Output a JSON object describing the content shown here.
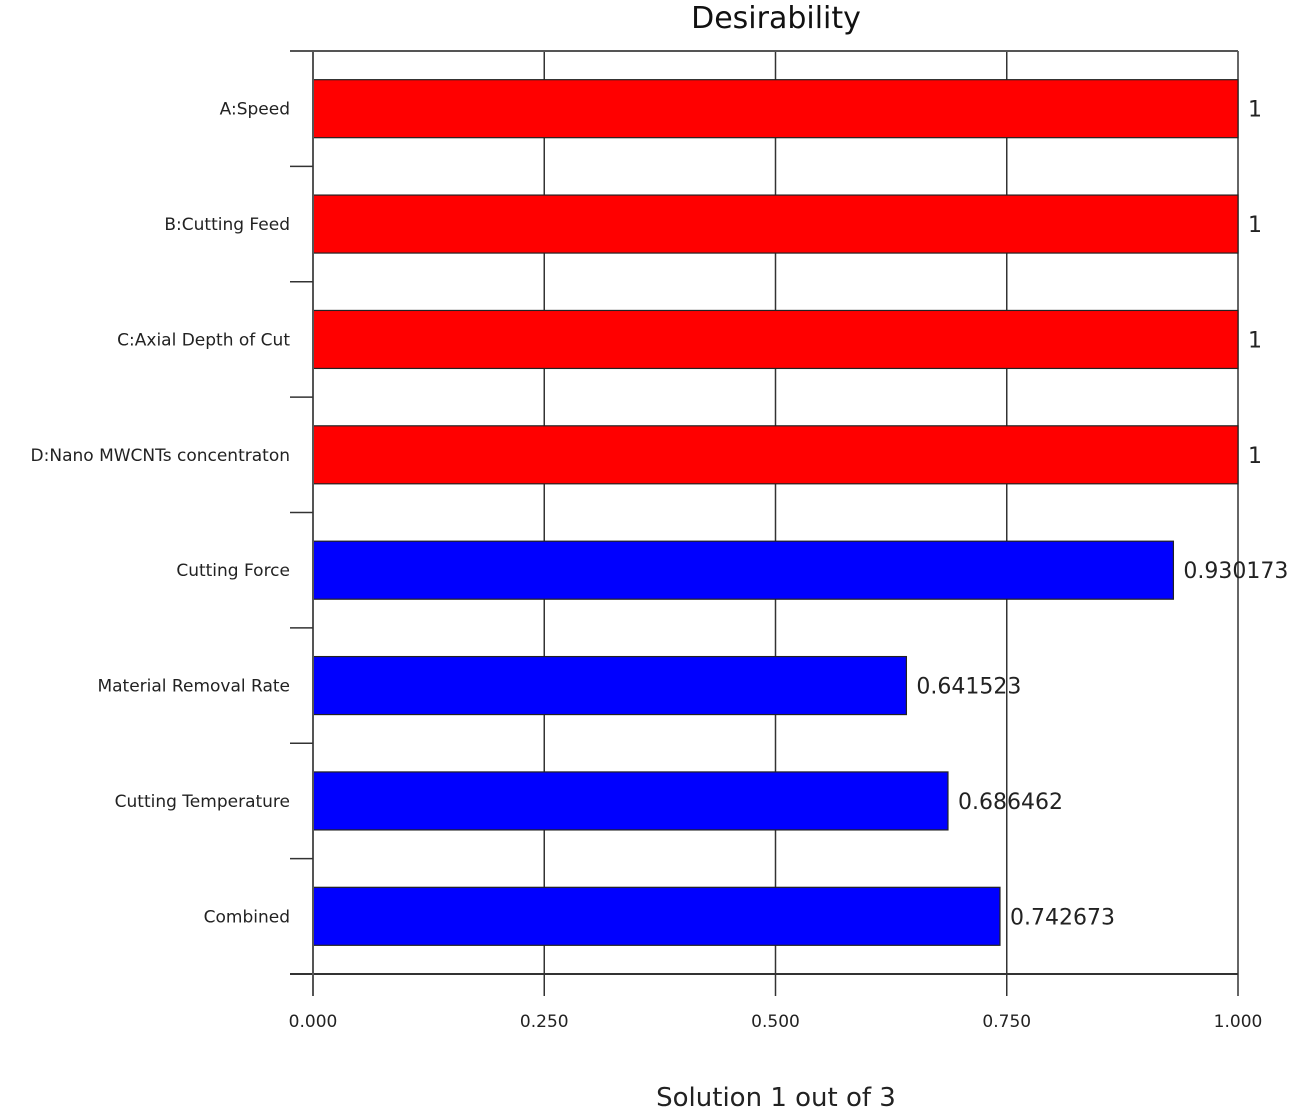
{
  "chart_data": {
    "type": "bar",
    "orientation": "horizontal",
    "title": "Desirability",
    "xlabel": "Solution 1 out of 3",
    "ylabel": "",
    "xlim": [
      0,
      1
    ],
    "x_ticks": [
      "0.000",
      "0.250",
      "0.500",
      "0.750",
      "1.000"
    ],
    "x_tick_values": [
      0,
      0.25,
      0.5,
      0.75,
      1.0
    ],
    "grid": true,
    "categories": [
      "A:Speed",
      "B:Cutting Feed",
      "C:Axial Depth of Cut",
      "D:Nano MWCNTs concentraton",
      "Cutting Force",
      "Material Removal Rate",
      "Cutting Temperature",
      "Combined"
    ],
    "values": [
      1,
      1,
      1,
      1,
      0.930173,
      0.641523,
      0.686462,
      0.742673
    ],
    "value_labels": [
      "1",
      "1",
      "1",
      "1",
      "0.930173",
      "0.641523",
      "0.686462",
      "0.742673"
    ],
    "colors": [
      "#ff0000",
      "#ff0000",
      "#ff0000",
      "#ff0000",
      "#0000ff",
      "#0000ff",
      "#0000ff",
      "#0000ff"
    ]
  }
}
